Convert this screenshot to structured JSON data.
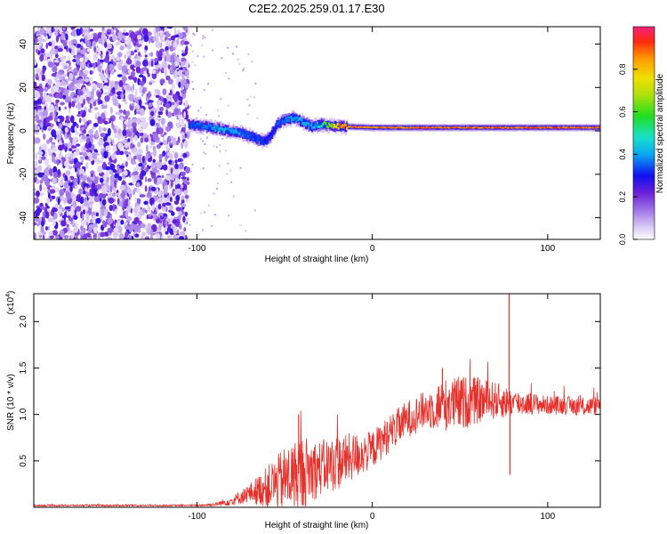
{
  "title": "C2E2.2025.259.01.17.E30",
  "chart_data": [
    {
      "type": "heatmap",
      "title": "C2E2.2025.259.01.17.E30",
      "xlabel": "Height of straight line (km)",
      "ylabel": "Frequency (Hz)",
      "xlim": [
        -193,
        130
      ],
      "ylim": [
        -50,
        48
      ],
      "xticks": [
        -100,
        0,
        100
      ],
      "xtick_labels": [
        "-100",
        "0",
        "100"
      ],
      "yticks": [
        40,
        20,
        0,
        -20,
        -40
      ],
      "ytick_labels": [
        "40",
        "20",
        "0",
        "-20",
        "-40"
      ],
      "colorbar": {
        "label": "Normalized spectral amplitude",
        "range": [
          0,
          1
        ],
        "ticks": [
          0.0,
          0.2,
          0.4,
          0.6,
          0.8
        ],
        "tick_labels": [
          "0.0",
          "0.2",
          "0.4",
          "0.6",
          "0.8"
        ]
      },
      "noise_region_x": [
        -193,
        -105
      ],
      "ridge": {
        "x": [
          -105,
          -95,
          -85,
          -75,
          -68,
          -62,
          -58,
          -55,
          -50,
          -45,
          -40,
          -35,
          -30,
          -25,
          -20,
          -10,
          0,
          10,
          20,
          30,
          50,
          70,
          90,
          110,
          130
        ],
        "freq": [
          3,
          2,
          0.5,
          -1,
          -3,
          -5,
          -2,
          3,
          5,
          6,
          4,
          2,
          3,
          2.5,
          2,
          1.8,
          1.5,
          1.5,
          1.5,
          1.5,
          1.5,
          1.5,
          1.5,
          1.5,
          1.5
        ],
        "amplitude": [
          0.35,
          0.4,
          0.45,
          0.4,
          0.35,
          0.35,
          0.3,
          0.35,
          0.4,
          0.45,
          0.45,
          0.4,
          0.5,
          0.7,
          0.9,
          0.95,
          0.95,
          0.95,
          0.95,
          0.95,
          0.95,
          0.95,
          0.95,
          0.95,
          0.95
        ]
      }
    },
    {
      "type": "line",
      "xlabel": "Height of straight line (km)",
      "ylabel": "SNR (10 * v/v)",
      "y_multiplier": "(x10",
      "y_multiplier_exp": "4",
      "y_multiplier_close": ")",
      "xlim": [
        -193,
        130
      ],
      "ylim": [
        0,
        2.3
      ],
      "xticks": [
        -100,
        0,
        100
      ],
      "xtick_labels": [
        "-100",
        "0",
        "100"
      ],
      "yticks": [
        0.5,
        1.0,
        1.5,
        2.0
      ],
      "ytick_labels": [
        "0.5",
        "1.0",
        "1.5",
        "2.0"
      ],
      "color": "#e8302b",
      "envelope": {
        "x": [
          -193,
          -100,
          -90,
          -80,
          -70,
          -60,
          -50,
          -40,
          -30,
          -20,
          -10,
          0,
          10,
          20,
          30,
          40,
          50,
          60,
          70,
          80,
          90,
          100,
          110,
          120,
          130
        ],
        "mean": [
          0.02,
          0.02,
          0.03,
          0.07,
          0.15,
          0.22,
          0.3,
          0.38,
          0.42,
          0.48,
          0.55,
          0.62,
          0.8,
          0.95,
          1.05,
          1.1,
          1.12,
          1.15,
          1.15,
          1.12,
          1.12,
          1.1,
          1.1,
          1.08,
          1.1
        ],
        "spread": [
          0.01,
          0.01,
          0.02,
          0.05,
          0.1,
          0.22,
          0.35,
          0.4,
          0.3,
          0.3,
          0.25,
          0.2,
          0.2,
          0.2,
          0.2,
          0.28,
          0.3,
          0.25,
          0.2,
          0.15,
          0.12,
          0.1,
          0.1,
          0.1,
          0.1
        ]
      },
      "spikes": [
        {
          "x": 78,
          "y": 2.3
        },
        {
          "x": 78.5,
          "y": 0.35
        },
        {
          "x": -42,
          "y": 1.0
        },
        {
          "x": 40,
          "y": 1.5
        }
      ]
    }
  ]
}
